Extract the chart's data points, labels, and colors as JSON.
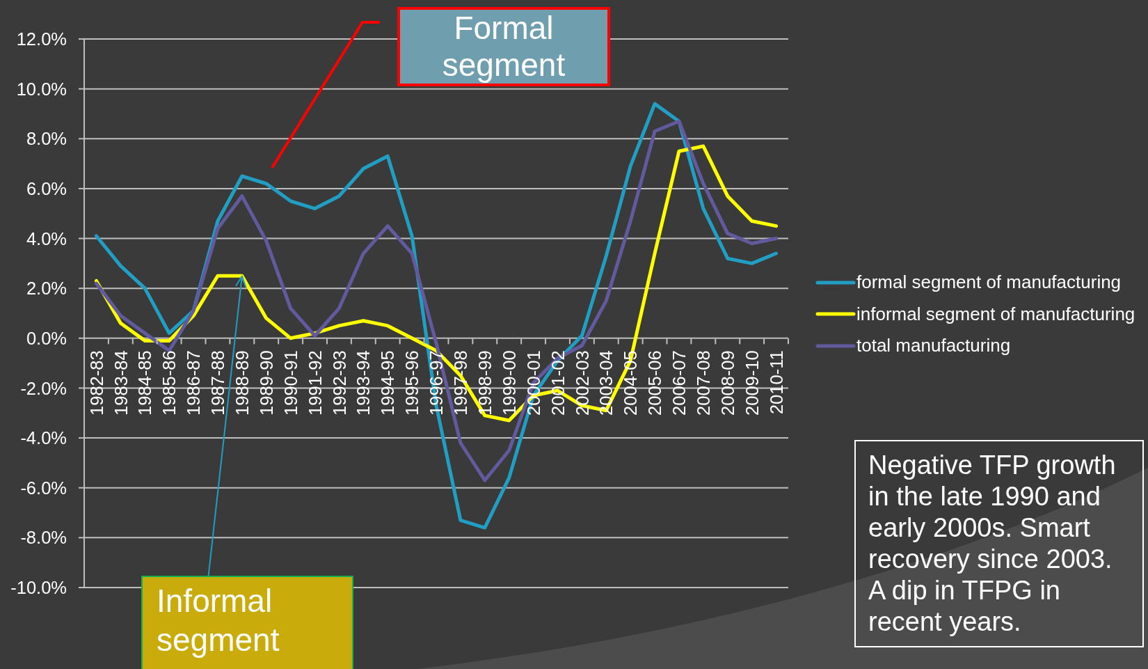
{
  "chart_data": {
    "type": "line",
    "categories": [
      "1982-83",
      "1983-84",
      "1984-85",
      "1985-86",
      "1986-87",
      "1987-88",
      "1988-89",
      "1989-90",
      "1990-91",
      "1991-92",
      "1992-93",
      "1993-94",
      "1994-95",
      "1995-96",
      "1996-97",
      "1997-98",
      "1998-99",
      "1999-00",
      "2000-01",
      "2001-02",
      "2002-03",
      "2003-04",
      "2004-05",
      "2005-06",
      "2006-07",
      "2007-08",
      "2008-09",
      "2009-10",
      "2010-11"
    ],
    "series": [
      {
        "name": "formal segment of manufacturing",
        "color": "#219ec4",
        "values": [
          4.1,
          2.9,
          2.0,
          0.2,
          1.1,
          4.7,
          6.5,
          6.2,
          5.5,
          5.2,
          5.7,
          6.8,
          7.3,
          4.1,
          -2.7,
          -7.3,
          -7.6,
          -5.6,
          -2.3,
          -0.9,
          0.1,
          3.3,
          6.9,
          9.4,
          8.7,
          5.2,
          3.2,
          3.0,
          3.4
        ]
      },
      {
        "name": "informal segment of manufacturing",
        "color": "#ffff00",
        "values": [
          2.3,
          0.6,
          -0.1,
          -0.1,
          0.9,
          2.5,
          2.5,
          0.8,
          0.0,
          0.2,
          0.5,
          0.7,
          0.5,
          0.0,
          -0.5,
          -1.5,
          -3.1,
          -3.3,
          -2.3,
          -2.1,
          -2.7,
          -2.9,
          -0.9,
          3.4,
          7.5,
          7.7,
          5.7,
          4.7,
          4.5
        ]
      },
      {
        "name": "total manufacturing",
        "color": "#625a9e",
        "values": [
          2.2,
          0.9,
          0.2,
          -0.5,
          1.1,
          4.4,
          5.7,
          3.9,
          1.2,
          0.1,
          1.2,
          3.4,
          4.5,
          3.4,
          -0.2,
          -4.2,
          -5.7,
          -4.5,
          -1.8,
          -0.8,
          -0.3,
          1.5,
          4.7,
          8.3,
          8.7,
          6.2,
          4.2,
          3.8,
          4.0
        ]
      }
    ],
    "ylim": [
      -10,
      12
    ],
    "yticks": [
      {
        "value": -10,
        "label": "-10.0%"
      },
      {
        "value": -8,
        "label": "-8.0%"
      },
      {
        "value": -6,
        "label": "-6.0%"
      },
      {
        "value": -4,
        "label": "-4.0%"
      },
      {
        "value": -2,
        "label": "-2.0%"
      },
      {
        "value": 0,
        "label": "0.0%"
      },
      {
        "value": 2,
        "label": "2.0%"
      },
      {
        "value": 4,
        "label": "4.0%"
      },
      {
        "value": 6,
        "label": "6.0%"
      },
      {
        "value": 8,
        "label": "8.0%"
      },
      {
        "value": 10,
        "label": "10.0%"
      },
      {
        "value": 12,
        "label": "12.0%"
      }
    ],
    "grid": "y",
    "legend": "right",
    "marker": "none",
    "line_style": "solid",
    "annotations": [
      "Formal segment",
      {
        "text": "Informal segment",
        "x": "1988-89",
        "y": 2.5
      },
      "Negative TFP growth in the late 1990 and early 2000s. Smart recovery since 2003. A dip in TFPG in recent years."
    ]
  }
}
